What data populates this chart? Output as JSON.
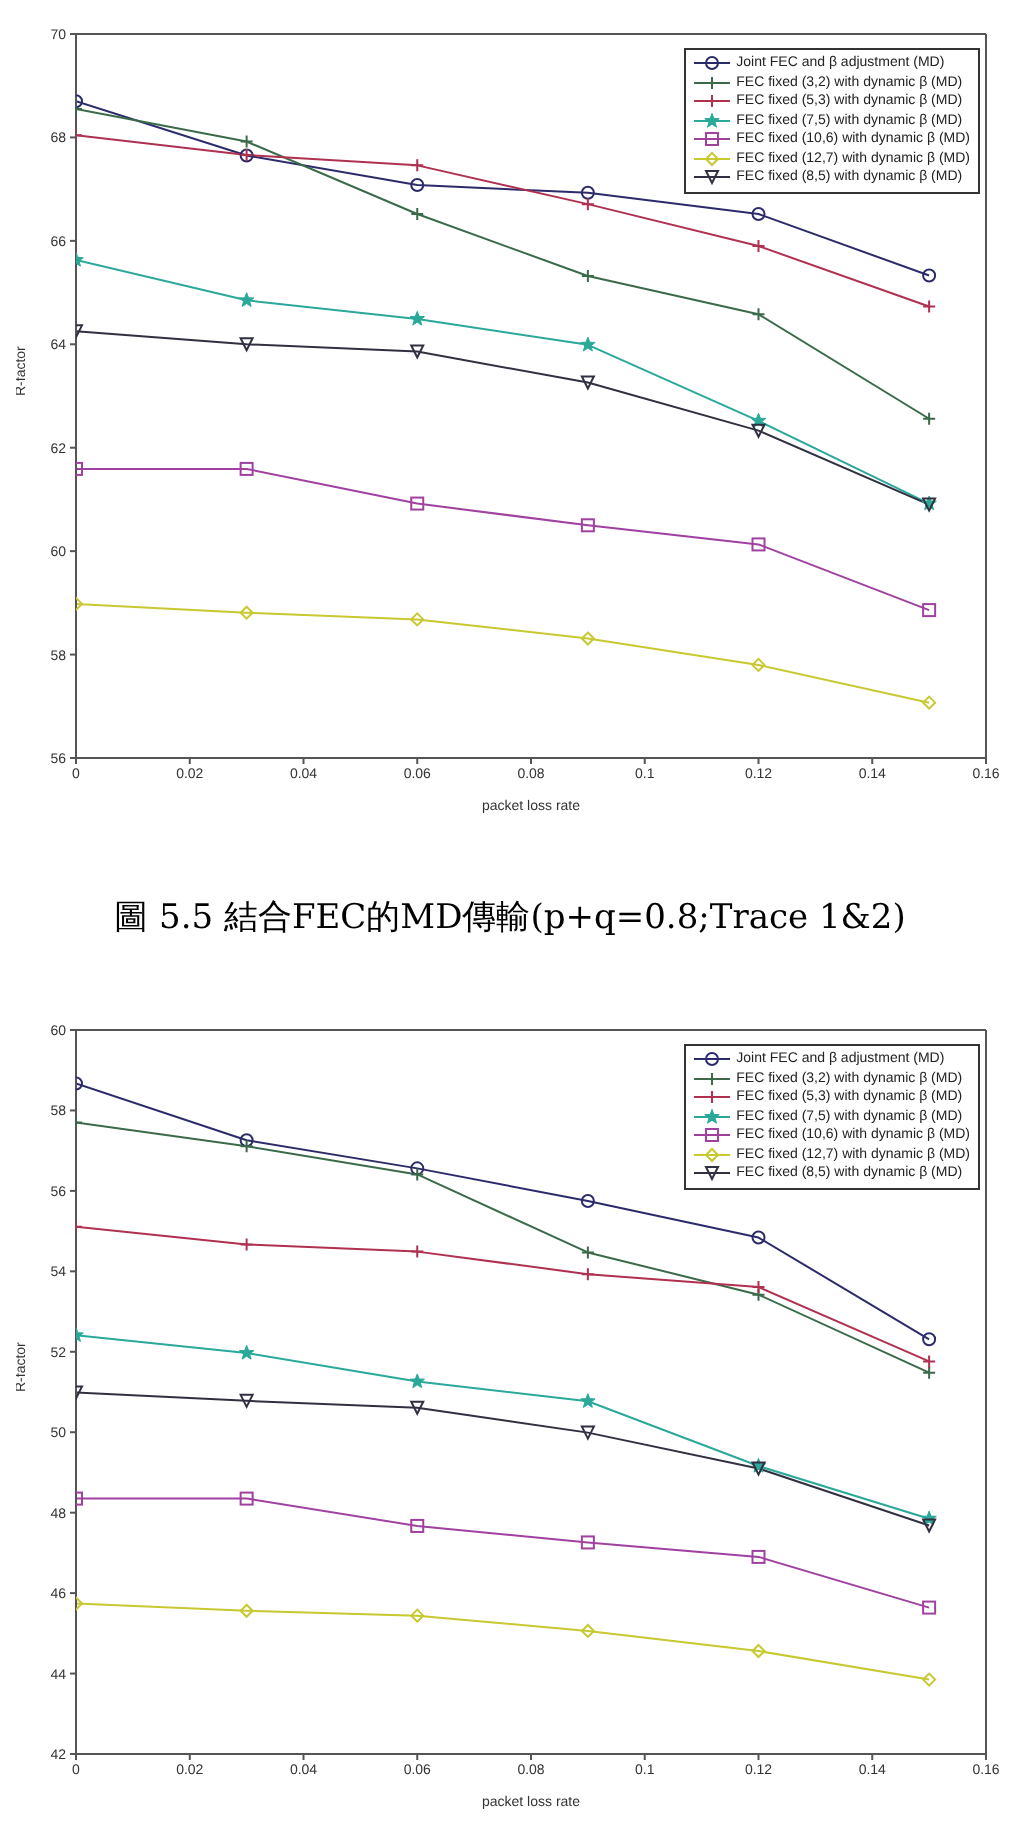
{
  "chart_data": [
    {
      "type": "line",
      "xlabel": "packet loss rate",
      "ylabel": "R-factor",
      "x": [
        0,
        0.03,
        0.06,
        0.09,
        0.12,
        0.15
      ],
      "xlim": [
        0,
        0.16
      ],
      "xticks": [
        0,
        0.02,
        0.04,
        0.06,
        0.08,
        0.1,
        0.12,
        0.14,
        0.16
      ],
      "ylim": [
        56,
        70
      ],
      "yticks": [
        56,
        58,
        60,
        62,
        64,
        66,
        68,
        70
      ],
      "grid": false,
      "legend": "top right",
      "annotations": [
        "圖 5.5 結合FEC的MD傳輸(p+q=0.8;Trace 1&2)"
      ],
      "series": [
        {
          "name": "Joint FEC and β adjustment (MD)",
          "color": "#2b2b6b",
          "marker": "circle",
          "values": [
            68.7,
            67.65,
            67.08,
            66.93,
            66.52,
            65.33
          ]
        },
        {
          "name": "FEC fixed (3,2) with dynamic β (MD)",
          "color": "#3a6a4a",
          "marker": "cross",
          "values": [
            68.55,
            67.92,
            66.52,
            65.32,
            64.58,
            62.56
          ]
        },
        {
          "name": "FEC fixed (5,3) with dynamic β (MD)",
          "color": "#b03050",
          "marker": "cross",
          "values": [
            68.04,
            67.66,
            67.46,
            66.71,
            65.9,
            64.73
          ]
        },
        {
          "name": "FEC fixed (7,5) with dynamic β (MD)",
          "color": "#2aa89a",
          "marker": "star",
          "values": [
            65.63,
            64.85,
            64.49,
            63.99,
            62.52,
            60.92
          ]
        },
        {
          "name": "FEC fixed (10,6) with dynamic β (MD)",
          "color": "#a040a0",
          "marker": "square",
          "values": [
            61.59,
            61.59,
            60.92,
            60.5,
            60.13,
            58.86
          ]
        },
        {
          "name": "FEC fixed (12,7) with dynamic β (MD)",
          "color": "#c8c830",
          "marker": "diamond",
          "values": [
            58.98,
            58.81,
            58.68,
            58.31,
            57.8,
            57.07
          ]
        },
        {
          "name": "FEC fixed (8,5) with dynamic β (MD)",
          "color": "#303040",
          "marker": "triangle",
          "values": [
            64.25,
            64.0,
            63.86,
            63.26,
            62.33,
            60.9
          ]
        }
      ]
    },
    {
      "type": "line",
      "xlabel": "packet loss rate",
      "ylabel": "R-factor",
      "x": [
        0,
        0.03,
        0.06,
        0.09,
        0.12,
        0.15
      ],
      "xlim": [
        0,
        0.16
      ],
      "xticks": [
        0,
        0.02,
        0.04,
        0.06,
        0.08,
        0.1,
        0.12,
        0.14,
        0.16
      ],
      "ylim": [
        42,
        60
      ],
      "yticks": [
        42,
        44,
        46,
        48,
        50,
        52,
        54,
        56,
        58,
        60
      ],
      "grid": false,
      "legend": "top right",
      "series": [
        {
          "name": "Joint FEC and β adjustment (MD)",
          "color": "#2b2b6b",
          "marker": "circle",
          "values": [
            58.67,
            57.26,
            56.56,
            55.75,
            54.84,
            52.31
          ]
        },
        {
          "name": "FEC fixed (3,2) with dynamic β (MD)",
          "color": "#3a6a4a",
          "marker": "cross",
          "values": [
            57.7,
            57.11,
            56.41,
            54.47,
            53.42,
            51.48
          ]
        },
        {
          "name": "FEC fixed (5,3) with dynamic β (MD)",
          "color": "#b03050",
          "marker": "cross",
          "values": [
            55.11,
            54.67,
            54.49,
            53.93,
            53.61,
            51.76
          ]
        },
        {
          "name": "FEC fixed (7,5) with dynamic β (MD)",
          "color": "#2aa89a",
          "marker": "star",
          "values": [
            52.41,
            51.97,
            51.26,
            50.77,
            49.16,
            47.85
          ]
        },
        {
          "name": "FEC fixed (10,6) with dynamic β (MD)",
          "color": "#a040a0",
          "marker": "square",
          "values": [
            48.35,
            48.35,
            47.67,
            47.26,
            46.9,
            45.64
          ]
        },
        {
          "name": "FEC fixed (12,7) with dynamic β (MD)",
          "color": "#c8c830",
          "marker": "diamond",
          "values": [
            45.74,
            45.56,
            45.44,
            45.06,
            44.56,
            43.85
          ]
        },
        {
          "name": "FEC fixed (8,5) with dynamic β (MD)",
          "color": "#303040",
          "marker": "triangle",
          "values": [
            50.99,
            50.78,
            50.61,
            49.99,
            49.1,
            47.68
          ]
        }
      ]
    }
  ]
}
